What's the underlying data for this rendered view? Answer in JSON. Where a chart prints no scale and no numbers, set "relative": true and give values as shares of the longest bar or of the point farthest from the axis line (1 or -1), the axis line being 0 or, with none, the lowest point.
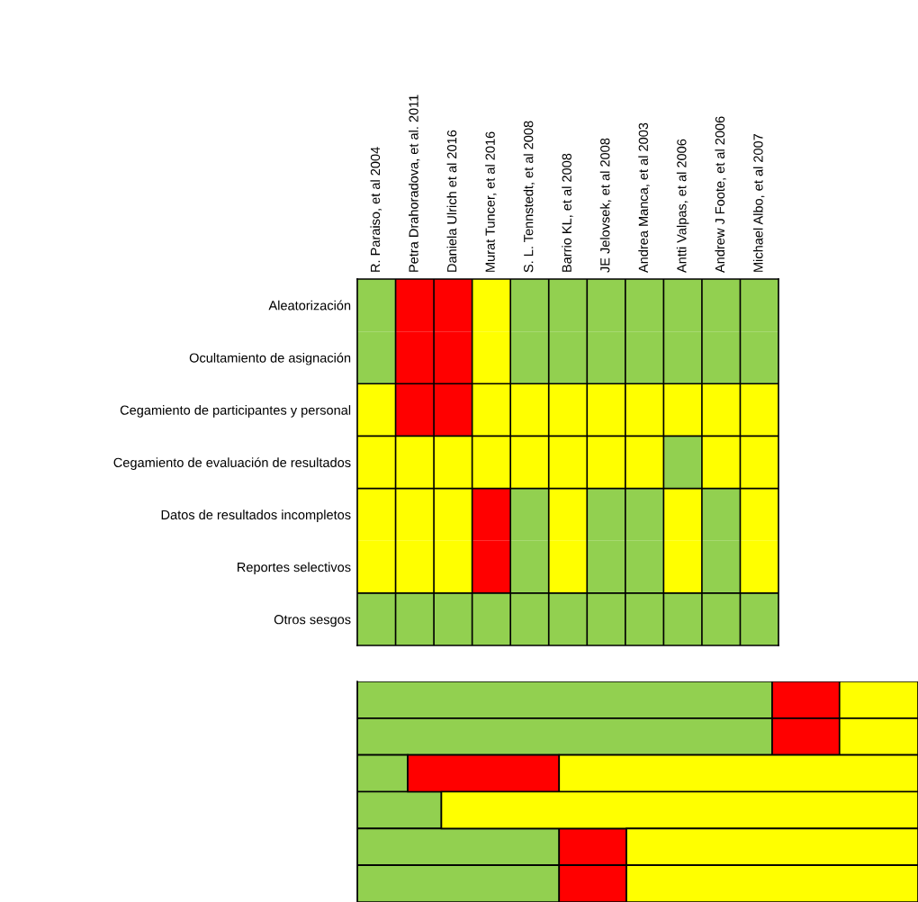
{
  "chart_data": [
    {
      "type": "other",
      "categories": [
        "R. Paraiso, et al 2004",
        "Petra Drahoradova, et al. 2011",
        "Daniela Ulrich et al 2016",
        "Murat Tuncer, et al 2016",
        "S. L. Tennstedt, et al 2008",
        "Barrio KL, et al 2008",
        "JE Jelovsek, et al 2008",
        "Andrea Manca, et al 2003",
        "Antti Valpas, et al 2006",
        "Andrew J Foote, et al 2006",
        "Michael Albo, et al 2007"
      ],
      "y_categories": [
        "Aleatorización",
        "Ocultamiento de asignación",
        "Cegamiento de participantes y personal",
        "Cegamiento de evaluación de resultados",
        "Datos de resultados incompletos",
        "Reportes selectivos",
        "Otros sesgos"
      ],
      "colors": [
        [
          "#92d050",
          "#ff0000",
          "#ff0000",
          "#ffff00",
          "#92d050",
          "#92d050",
          "#92d050",
          "#92d050",
          "#92d050",
          "#92d050",
          "#92d050"
        ],
        [
          "#92d050",
          "#ff0000",
          "#ff0000",
          "#ffff00",
          "#92d050",
          "#92d050",
          "#92d050",
          "#92d050",
          "#92d050",
          "#92d050",
          "#92d050"
        ],
        [
          "#ffff00",
          "#ff0000",
          "#ff0000",
          "#ffff00",
          "#ffff00",
          "#ffff00",
          "#ffff00",
          "#ffff00",
          "#ffff00",
          "#ffff00",
          "#ffff00"
        ],
        [
          "#ffff00",
          "#ffff00",
          "#ffff00",
          "#ffff00",
          "#ffff00",
          "#ffff00",
          "#ffff00",
          "#ffff00",
          "#92d050",
          "#ffff00",
          "#ffff00"
        ],
        [
          "#ffff00",
          "#ffff00",
          "#ffff00",
          "#ff0000",
          "#92d050",
          "#ffff00",
          "#92d050",
          "#92d050",
          "#ffff00",
          "#92d050",
          "#ffff00"
        ],
        [
          "#ffff00",
          "#ffff00",
          "#ffff00",
          "#ff0000",
          "#92d050",
          "#ffff00",
          "#92d050",
          "#92d050",
          "#ffff00",
          "#92d050",
          "#ffff00"
        ],
        [
          "#92d050",
          "#92d050",
          "#92d050",
          "#92d050",
          "#92d050",
          "#92d050",
          "#92d050",
          "#92d050",
          "#92d050",
          "#92d050",
          "#92d050"
        ]
      ]
    },
    {
      "type": "bar",
      "orientation": "horizontal",
      "stacked": true,
      "relative": true,
      "categories": [
        null,
        null,
        null,
        null,
        null,
        null
      ],
      "series": [
        {
          "color": "#92d050",
          "values": [
            0.74,
            0.74,
            0.09,
            0.15,
            0.36,
            0.36
          ]
        },
        {
          "color": "#ff0000",
          "values": [
            0.12,
            0.12,
            0.27,
            null,
            0.12,
            0.12
          ]
        },
        {
          "color": "#ffff00",
          "values": [
            0.14,
            0.14,
            0.64,
            0.85,
            0.52,
            0.52
          ]
        }
      ]
    }
  ]
}
